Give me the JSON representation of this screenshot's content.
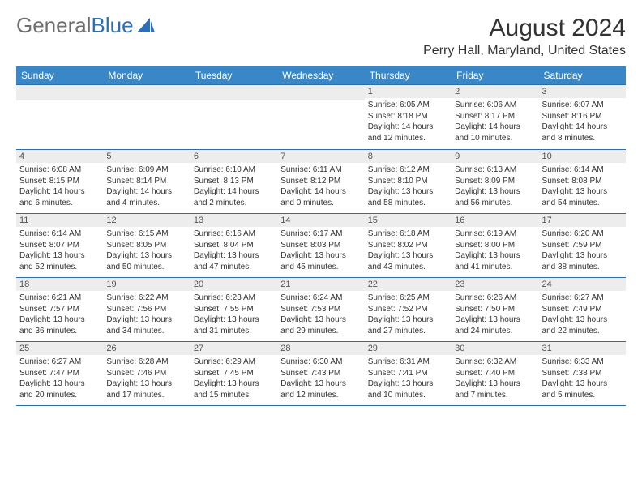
{
  "brand": {
    "word1": "General",
    "word2": "Blue"
  },
  "title": "August 2024",
  "location": "Perry Hall, Maryland, United States",
  "title_fontsize": 30,
  "location_fontsize": 16,
  "colors": {
    "brand_gray": "#6f6f6f",
    "brand_blue": "#2b6fb8",
    "header_bg": "#3a87c7",
    "header_text": "#ffffff",
    "cell_border": "#2e6da4",
    "daynum_bg": "#ededed",
    "text": "#333333",
    "background": "#ffffff"
  },
  "day_headers": [
    "Sunday",
    "Monday",
    "Tuesday",
    "Wednesday",
    "Thursday",
    "Friday",
    "Saturday"
  ],
  "weeks": [
    [
      null,
      null,
      null,
      null,
      {
        "n": "1",
        "sr": "6:05 AM",
        "ss": "8:18 PM",
        "dl": "14 hours and 12 minutes."
      },
      {
        "n": "2",
        "sr": "6:06 AM",
        "ss": "8:17 PM",
        "dl": "14 hours and 10 minutes."
      },
      {
        "n": "3",
        "sr": "6:07 AM",
        "ss": "8:16 PM",
        "dl": "14 hours and 8 minutes."
      }
    ],
    [
      {
        "n": "4",
        "sr": "6:08 AM",
        "ss": "8:15 PM",
        "dl": "14 hours and 6 minutes."
      },
      {
        "n": "5",
        "sr": "6:09 AM",
        "ss": "8:14 PM",
        "dl": "14 hours and 4 minutes."
      },
      {
        "n": "6",
        "sr": "6:10 AM",
        "ss": "8:13 PM",
        "dl": "14 hours and 2 minutes."
      },
      {
        "n": "7",
        "sr": "6:11 AM",
        "ss": "8:12 PM",
        "dl": "14 hours and 0 minutes."
      },
      {
        "n": "8",
        "sr": "6:12 AM",
        "ss": "8:10 PM",
        "dl": "13 hours and 58 minutes."
      },
      {
        "n": "9",
        "sr": "6:13 AM",
        "ss": "8:09 PM",
        "dl": "13 hours and 56 minutes."
      },
      {
        "n": "10",
        "sr": "6:14 AM",
        "ss": "8:08 PM",
        "dl": "13 hours and 54 minutes."
      }
    ],
    [
      {
        "n": "11",
        "sr": "6:14 AM",
        "ss": "8:07 PM",
        "dl": "13 hours and 52 minutes."
      },
      {
        "n": "12",
        "sr": "6:15 AM",
        "ss": "8:05 PM",
        "dl": "13 hours and 50 minutes."
      },
      {
        "n": "13",
        "sr": "6:16 AM",
        "ss": "8:04 PM",
        "dl": "13 hours and 47 minutes."
      },
      {
        "n": "14",
        "sr": "6:17 AM",
        "ss": "8:03 PM",
        "dl": "13 hours and 45 minutes."
      },
      {
        "n": "15",
        "sr": "6:18 AM",
        "ss": "8:02 PM",
        "dl": "13 hours and 43 minutes."
      },
      {
        "n": "16",
        "sr": "6:19 AM",
        "ss": "8:00 PM",
        "dl": "13 hours and 41 minutes."
      },
      {
        "n": "17",
        "sr": "6:20 AM",
        "ss": "7:59 PM",
        "dl": "13 hours and 38 minutes."
      }
    ],
    [
      {
        "n": "18",
        "sr": "6:21 AM",
        "ss": "7:57 PM",
        "dl": "13 hours and 36 minutes."
      },
      {
        "n": "19",
        "sr": "6:22 AM",
        "ss": "7:56 PM",
        "dl": "13 hours and 34 minutes."
      },
      {
        "n": "20",
        "sr": "6:23 AM",
        "ss": "7:55 PM",
        "dl": "13 hours and 31 minutes."
      },
      {
        "n": "21",
        "sr": "6:24 AM",
        "ss": "7:53 PM",
        "dl": "13 hours and 29 minutes."
      },
      {
        "n": "22",
        "sr": "6:25 AM",
        "ss": "7:52 PM",
        "dl": "13 hours and 27 minutes."
      },
      {
        "n": "23",
        "sr": "6:26 AM",
        "ss": "7:50 PM",
        "dl": "13 hours and 24 minutes."
      },
      {
        "n": "24",
        "sr": "6:27 AM",
        "ss": "7:49 PM",
        "dl": "13 hours and 22 minutes."
      }
    ],
    [
      {
        "n": "25",
        "sr": "6:27 AM",
        "ss": "7:47 PM",
        "dl": "13 hours and 20 minutes."
      },
      {
        "n": "26",
        "sr": "6:28 AM",
        "ss": "7:46 PM",
        "dl": "13 hours and 17 minutes."
      },
      {
        "n": "27",
        "sr": "6:29 AM",
        "ss": "7:45 PM",
        "dl": "13 hours and 15 minutes."
      },
      {
        "n": "28",
        "sr": "6:30 AM",
        "ss": "7:43 PM",
        "dl": "13 hours and 12 minutes."
      },
      {
        "n": "29",
        "sr": "6:31 AM",
        "ss": "7:41 PM",
        "dl": "13 hours and 10 minutes."
      },
      {
        "n": "30",
        "sr": "6:32 AM",
        "ss": "7:40 PM",
        "dl": "13 hours and 7 minutes."
      },
      {
        "n": "31",
        "sr": "6:33 AM",
        "ss": "7:38 PM",
        "dl": "13 hours and 5 minutes."
      }
    ]
  ],
  "labels": {
    "sunrise": "Sunrise:",
    "sunset": "Sunset:",
    "daylight": "Daylight:"
  }
}
